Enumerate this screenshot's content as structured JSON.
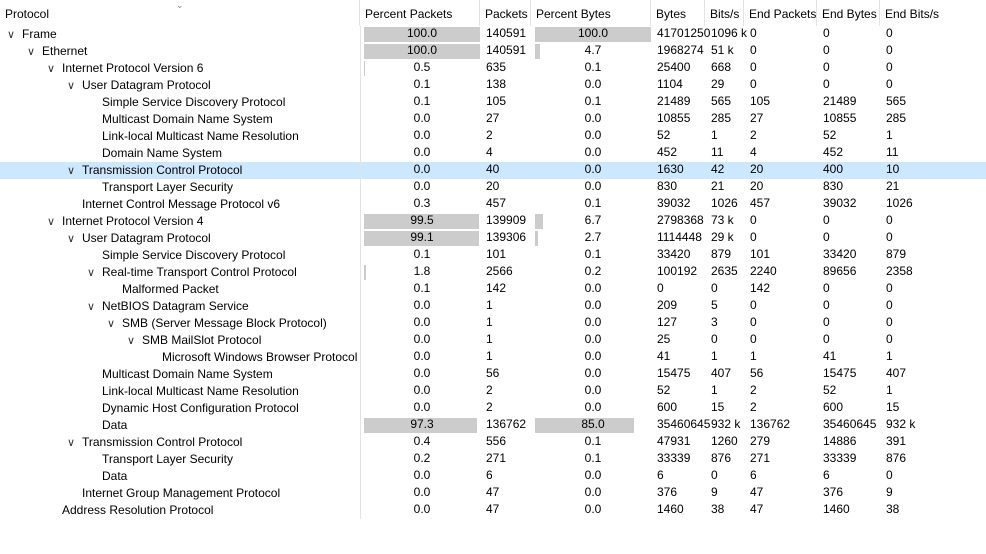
{
  "columns": [
    "Protocol",
    "Percent Packets",
    "Packets",
    "Percent Bytes",
    "Bytes",
    "Bits/s",
    "End Packets",
    "End Bytes",
    "End Bits/s"
  ],
  "rows": [
    {
      "name": "Frame",
      "level": 0,
      "expand": "open",
      "pct_packets": "100.0",
      "packets": "140591",
      "pct_bytes": "100.0",
      "bytes": "41701250",
      "bits": "1096 k",
      "end_packets": "0",
      "end_bytes": "0",
      "end_bits": "0",
      "pp_fill": 100,
      "pb_fill": 100
    },
    {
      "name": "Ethernet",
      "level": 1,
      "expand": "open",
      "pct_packets": "100.0",
      "packets": "140591",
      "pct_bytes": "4.7",
      "bytes": "1968274",
      "bits": "51 k",
      "end_packets": "0",
      "end_bytes": "0",
      "end_bits": "0",
      "pp_fill": 100,
      "pb_fill": 4.7
    },
    {
      "name": "Internet Protocol Version 6",
      "level": 2,
      "expand": "open",
      "pct_packets": "0.5",
      "packets": "635",
      "pct_bytes": "0.1",
      "bytes": "25400",
      "bits": "668",
      "end_packets": "0",
      "end_bytes": "0",
      "end_bits": "0",
      "pp_fill": 0.5,
      "pb_fill": 0.1
    },
    {
      "name": "User Datagram Protocol",
      "level": 3,
      "expand": "open",
      "pct_packets": "0.1",
      "packets": "138",
      "pct_bytes": "0.0",
      "bytes": "1104",
      "bits": "29",
      "end_packets": "0",
      "end_bytes": "0",
      "end_bits": "0",
      "pp_fill": 0.1,
      "pb_fill": 0
    },
    {
      "name": "Simple Service Discovery Protocol",
      "level": 4,
      "expand": "none",
      "pct_packets": "0.1",
      "packets": "105",
      "pct_bytes": "0.1",
      "bytes": "21489",
      "bits": "565",
      "end_packets": "105",
      "end_bytes": "21489",
      "end_bits": "565",
      "pp_fill": 0.1,
      "pb_fill": 0.1
    },
    {
      "name": "Multicast Domain Name System",
      "level": 4,
      "expand": "none",
      "pct_packets": "0.0",
      "packets": "27",
      "pct_bytes": "0.0",
      "bytes": "10855",
      "bits": "285",
      "end_packets": "27",
      "end_bytes": "10855",
      "end_bits": "285",
      "pp_fill": 0,
      "pb_fill": 0
    },
    {
      "name": "Link-local Multicast Name Resolution",
      "level": 4,
      "expand": "none",
      "pct_packets": "0.0",
      "packets": "2",
      "pct_bytes": "0.0",
      "bytes": "52",
      "bits": "1",
      "end_packets": "2",
      "end_bytes": "52",
      "end_bits": "1",
      "pp_fill": 0,
      "pb_fill": 0
    },
    {
      "name": "Domain Name System",
      "level": 4,
      "expand": "none",
      "pct_packets": "0.0",
      "packets": "4",
      "pct_bytes": "0.0",
      "bytes": "452",
      "bits": "11",
      "end_packets": "4",
      "end_bytes": "452",
      "end_bits": "11",
      "pp_fill": 0,
      "pb_fill": 0
    },
    {
      "name": "Transmission Control Protocol",
      "level": 3,
      "expand": "open",
      "selected": true,
      "pct_packets": "0.0",
      "packets": "40",
      "pct_bytes": "0.0",
      "bytes": "1630",
      "bits": "42",
      "end_packets": "20",
      "end_bytes": "400",
      "end_bits": "10",
      "pp_fill": 0,
      "pb_fill": 0
    },
    {
      "name": "Transport Layer Security",
      "level": 4,
      "expand": "none",
      "pct_packets": "0.0",
      "packets": "20",
      "pct_bytes": "0.0",
      "bytes": "830",
      "bits": "21",
      "end_packets": "20",
      "end_bytes": "830",
      "end_bits": "21",
      "pp_fill": 0,
      "pb_fill": 0
    },
    {
      "name": "Internet Control Message Protocol v6",
      "level": 3,
      "expand": "none",
      "pct_packets": "0.3",
      "packets": "457",
      "pct_bytes": "0.1",
      "bytes": "39032",
      "bits": "1026",
      "end_packets": "457",
      "end_bytes": "39032",
      "end_bits": "1026",
      "pp_fill": 0.3,
      "pb_fill": 0.1
    },
    {
      "name": "Internet Protocol Version 4",
      "level": 2,
      "expand": "open",
      "pct_packets": "99.5",
      "packets": "139909",
      "pct_bytes": "6.7",
      "bytes": "2798368",
      "bits": "73 k",
      "end_packets": "0",
      "end_bytes": "0",
      "end_bits": "0",
      "pp_fill": 99.5,
      "pb_fill": 6.7
    },
    {
      "name": "User Datagram Protocol",
      "level": 3,
      "expand": "open",
      "pct_packets": "99.1",
      "packets": "139306",
      "pct_bytes": "2.7",
      "bytes": "1114448",
      "bits": "29 k",
      "end_packets": "0",
      "end_bytes": "0",
      "end_bits": "0",
      "pp_fill": 99.1,
      "pb_fill": 2.7
    },
    {
      "name": "Simple Service Discovery Protocol",
      "level": 4,
      "expand": "none",
      "pct_packets": "0.1",
      "packets": "101",
      "pct_bytes": "0.1",
      "bytes": "33420",
      "bits": "879",
      "end_packets": "101",
      "end_bytes": "33420",
      "end_bits": "879",
      "pp_fill": 0.1,
      "pb_fill": 0.1
    },
    {
      "name": "Real-time Transport Control Protocol",
      "level": 4,
      "expand": "open",
      "pct_packets": "1.8",
      "packets": "2566",
      "pct_bytes": "0.2",
      "bytes": "100192",
      "bits": "2635",
      "end_packets": "2240",
      "end_bytes": "89656",
      "end_bits": "2358",
      "pp_fill": 1.8,
      "pb_fill": 0.2
    },
    {
      "name": "Malformed Packet",
      "level": 5,
      "expand": "none",
      "pct_packets": "0.1",
      "packets": "142",
      "pct_bytes": "0.0",
      "bytes": "0",
      "bits": "0",
      "end_packets": "142",
      "end_bytes": "0",
      "end_bits": "0",
      "pp_fill": 0.1,
      "pb_fill": 0
    },
    {
      "name": "NetBIOS Datagram Service",
      "level": 4,
      "expand": "open",
      "pct_packets": "0.0",
      "packets": "1",
      "pct_bytes": "0.0",
      "bytes": "209",
      "bits": "5",
      "end_packets": "0",
      "end_bytes": "0",
      "end_bits": "0",
      "pp_fill": 0,
      "pb_fill": 0
    },
    {
      "name": "SMB (Server Message Block Protocol)",
      "level": 5,
      "expand": "open",
      "pct_packets": "0.0",
      "packets": "1",
      "pct_bytes": "0.0",
      "bytes": "127",
      "bits": "3",
      "end_packets": "0",
      "end_bytes": "0",
      "end_bits": "0",
      "pp_fill": 0,
      "pb_fill": 0
    },
    {
      "name": "SMB MailSlot Protocol",
      "level": 6,
      "expand": "open",
      "pct_packets": "0.0",
      "packets": "1",
      "pct_bytes": "0.0",
      "bytes": "25",
      "bits": "0",
      "end_packets": "0",
      "end_bytes": "0",
      "end_bits": "0",
      "pp_fill": 0,
      "pb_fill": 0
    },
    {
      "name": "Microsoft Windows Browser Protocol",
      "level": 7,
      "expand": "none",
      "pct_packets": "0.0",
      "packets": "1",
      "pct_bytes": "0.0",
      "bytes": "41",
      "bits": "1",
      "end_packets": "1",
      "end_bytes": "41",
      "end_bits": "1",
      "pp_fill": 0,
      "pb_fill": 0
    },
    {
      "name": "Multicast Domain Name System",
      "level": 4,
      "expand": "none",
      "pct_packets": "0.0",
      "packets": "56",
      "pct_bytes": "0.0",
      "bytes": "15475",
      "bits": "407",
      "end_packets": "56",
      "end_bytes": "15475",
      "end_bits": "407",
      "pp_fill": 0,
      "pb_fill": 0
    },
    {
      "name": "Link-local Multicast Name Resolution",
      "level": 4,
      "expand": "none",
      "pct_packets": "0.0",
      "packets": "2",
      "pct_bytes": "0.0",
      "bytes": "52",
      "bits": "1",
      "end_packets": "2",
      "end_bytes": "52",
      "end_bits": "1",
      "pp_fill": 0,
      "pb_fill": 0
    },
    {
      "name": "Dynamic Host Configuration Protocol",
      "level": 4,
      "expand": "none",
      "pct_packets": "0.0",
      "packets": "2",
      "pct_bytes": "0.0",
      "bytes": "600",
      "bits": "15",
      "end_packets": "2",
      "end_bytes": "600",
      "end_bits": "15",
      "pp_fill": 0,
      "pb_fill": 0
    },
    {
      "name": "Data",
      "level": 4,
      "expand": "none",
      "pct_packets": "97.3",
      "packets": "136762",
      "pct_bytes": "85.0",
      "bytes": "35460645",
      "bits": "932 k",
      "end_packets": "136762",
      "end_bytes": "35460645",
      "end_bits": "932 k",
      "pp_fill": 97.3,
      "pb_fill": 85.0
    },
    {
      "name": "Transmission Control Protocol",
      "level": 3,
      "expand": "open",
      "pct_packets": "0.4",
      "packets": "556",
      "pct_bytes": "0.1",
      "bytes": "47931",
      "bits": "1260",
      "end_packets": "279",
      "end_bytes": "14886",
      "end_bits": "391",
      "pp_fill": 0.4,
      "pb_fill": 0.1
    },
    {
      "name": "Transport Layer Security",
      "level": 4,
      "expand": "none",
      "pct_packets": "0.2",
      "packets": "271",
      "pct_bytes": "0.1",
      "bytes": "33339",
      "bits": "876",
      "end_packets": "271",
      "end_bytes": "33339",
      "end_bits": "876",
      "pp_fill": 0.2,
      "pb_fill": 0.1
    },
    {
      "name": "Data",
      "level": 4,
      "expand": "none",
      "pct_packets": "0.0",
      "packets": "6",
      "pct_bytes": "0.0",
      "bytes": "6",
      "bits": "0",
      "end_packets": "6",
      "end_bytes": "6",
      "end_bits": "0",
      "pp_fill": 0,
      "pb_fill": 0
    },
    {
      "name": "Internet Group Management Protocol",
      "level": 3,
      "expand": "none",
      "pct_packets": "0.0",
      "packets": "47",
      "pct_bytes": "0.0",
      "bytes": "376",
      "bits": "9",
      "end_packets": "47",
      "end_bytes": "376",
      "end_bits": "9",
      "pp_fill": 0,
      "pb_fill": 0
    },
    {
      "name": "Address Resolution Protocol",
      "level": 2,
      "expand": "none",
      "pct_packets": "0.0",
      "packets": "47",
      "pct_bytes": "0.0",
      "bytes": "1460",
      "bits": "38",
      "end_packets": "47",
      "end_bytes": "1460",
      "end_bits": "38",
      "pp_fill": 0,
      "pb_fill": 0
    }
  ]
}
